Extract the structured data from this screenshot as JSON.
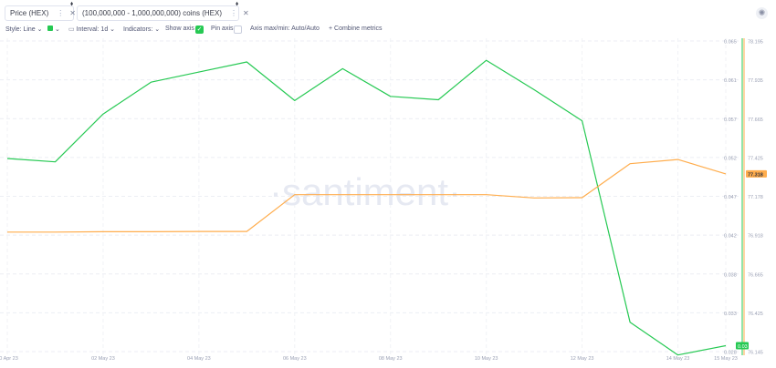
{
  "metrics": [
    {
      "label": "Price (HEX)",
      "color": "#26c953"
    },
    {
      "label": "(100,000,000 - 1,000,000,000) coins (HEX)",
      "color": "#ffad4d"
    }
  ],
  "toolbar": {
    "style_label": "Style: Line",
    "interval_label": "Interval: 1d",
    "indicators_label": "Indicators:",
    "show_axis_label": "Show axis",
    "pin_axis_label": "Pin axis",
    "axis_max_min_label": "Axis max/min: Auto/Auto",
    "combine_label": "+ Combine metrics"
  },
  "watermark": "·santiment·",
  "chart_data": {
    "type": "line",
    "x": [
      "30 Apr 23",
      "01 May 23",
      "02 May 23",
      "03 May 23",
      "04 May 23",
      "05 May 23",
      "06 May 23",
      "07 May 23",
      "08 May 23",
      "09 May 23",
      "10 May 23",
      "11 May 23",
      "12 May 23",
      "13 May 23",
      "14 May 23",
      "15 May 23"
    ],
    "xticks": [
      "30 Apr 23",
      "02 May 23",
      "04 May 23",
      "06 May 23",
      "08 May 23",
      "10 May 23",
      "12 May 23",
      "14 May 23",
      "15 May 23"
    ],
    "series": [
      {
        "name": "Price (HEX)",
        "color": "#26c953",
        "axis": "left",
        "values": [
          0.0515,
          0.0511,
          0.0568,
          0.0606,
          0.0618,
          0.063,
          0.0584,
          0.0622,
          0.0589,
          0.0585,
          0.0632,
          0.0597,
          0.056,
          0.032,
          0.0281,
          0.0292
        ]
      },
      {
        "name": "(100,000,000 - 1,000,000,000) coins (HEX)",
        "color": "#ffad4d",
        "axis": "right",
        "values": [
          76.934,
          76.934,
          76.936,
          76.936,
          76.938,
          76.938,
          77.181,
          77.181,
          77.181,
          77.181,
          77.181,
          77.159,
          77.161,
          77.385,
          77.413,
          77.318
        ]
      }
    ],
    "yaxis_left": {
      "ticks": [
        "0.065",
        "0.061",
        "0.057",
        "0.052",
        "0.047",
        "0.042",
        "0.038",
        "0.033",
        "0.028"
      ],
      "min": 0.0285,
      "max": 0.0655
    },
    "yaxis_right": {
      "ticks": [
        "78.195",
        "77.935",
        "77.665",
        "77.425",
        "77.178",
        "76.918",
        "76.665",
        "76.425",
        "76.145"
      ],
      "min": 76.145,
      "max": 78.195
    },
    "current_labels": {
      "left": "0.03",
      "right": "77.318"
    },
    "grid": true
  }
}
